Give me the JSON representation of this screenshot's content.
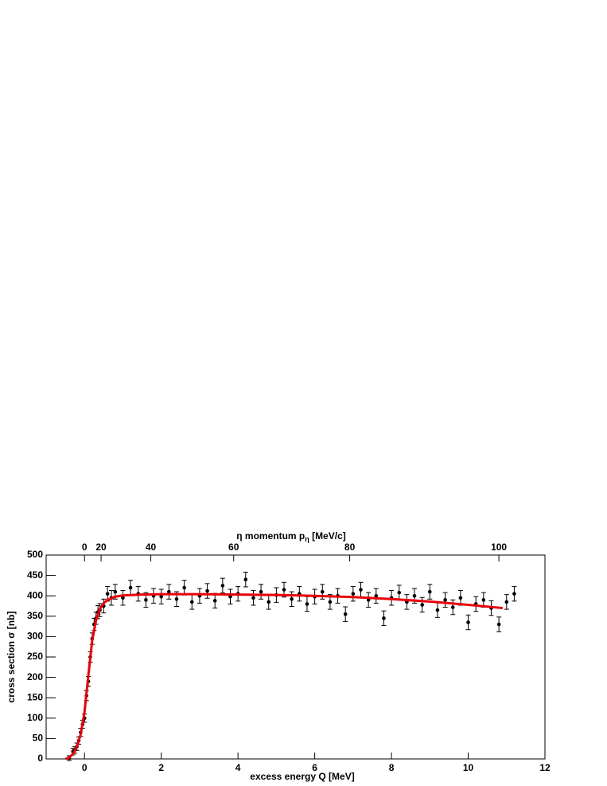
{
  "chart_data": {
    "type": "scatter",
    "x_label": "excess energy Q [MeV]",
    "y_label": "cross section σ [nb]",
    "x2_label": [
      "η momentum p",
      "η",
      " [MeV/c]"
    ],
    "xlim": [
      -1,
      12
    ],
    "xticks": [
      0,
      2,
      4,
      6,
      8,
      10,
      12
    ],
    "ylim": [
      0,
      500
    ],
    "yticks": [
      0,
      50,
      100,
      150,
      200,
      250,
      300,
      350,
      400,
      450,
      500
    ],
    "x2ticks": [
      0,
      20,
      40,
      60,
      80,
      100
    ],
    "series": [
      {
        "type": "errorbar",
        "color": "#000000",
        "x": [
          -0.4,
          -0.3,
          -0.25,
          -0.2,
          -0.15,
          -0.1,
          -0.05,
          0,
          0.05,
          0.1,
          0.15,
          0.2,
          0.25,
          0.3,
          0.35,
          0.4,
          0.5,
          0.6,
          0.7,
          0.8,
          1.0,
          1.2,
          1.4,
          1.6,
          1.8,
          2.0,
          2.2,
          2.4,
          2.6,
          2.8,
          3.0,
          3.2,
          3.4,
          3.6,
          3.8,
          4.0,
          4.2,
          4.4,
          4.6,
          4.8,
          5.0,
          5.2,
          5.4,
          5.6,
          5.8,
          6.0,
          6.2,
          6.4,
          6.6,
          6.8,
          7.0,
          7.2,
          7.4,
          7.6,
          7.8,
          8.0,
          8.2,
          8.4,
          8.6,
          8.8,
          9.0,
          9.2,
          9.4,
          9.6,
          9.8,
          10.0,
          10.2,
          10.4,
          10.6,
          10.8,
          11.0,
          11.2
        ],
        "values": [
          2,
          18,
          22,
          30,
          45,
          65,
          85,
          100,
          155,
          190,
          250,
          295,
          330,
          345,
          360,
          365,
          375,
          405,
          395,
          410,
          395,
          420,
          405,
          390,
          400,
          398,
          410,
          392,
          420,
          385,
          400,
          412,
          388,
          425,
          398,
          405,
          440,
          395,
          410,
          385,
          402,
          415,
          392,
          405,
          380,
          398,
          410,
          385,
          400,
          355,
          405,
          415,
          390,
          400,
          345,
          395,
          408,
          385,
          400,
          378,
          410,
          365,
          390,
          372,
          395,
          335,
          380,
          390,
          370,
          330,
          385,
          405
        ],
        "errors": [
          6,
          8,
          8,
          9,
          9,
          10,
          10,
          10,
          12,
          12,
          13,
          14,
          15,
          15,
          16,
          16,
          17,
          18,
          18,
          18,
          18,
          18,
          18,
          18,
          18,
          18,
          18,
          18,
          18,
          18,
          18,
          18,
          18,
          18,
          18,
          18,
          18,
          18,
          18,
          18,
          18,
          18,
          18,
          18,
          18,
          18,
          18,
          18,
          18,
          18,
          18,
          18,
          18,
          18,
          18,
          18,
          18,
          18,
          18,
          18,
          18,
          18,
          18,
          18,
          18,
          18,
          18,
          18,
          18,
          18,
          18,
          18
        ]
      },
      {
        "type": "line",
        "color": "#e8000b",
        "x": [
          -0.5,
          -0.4,
          -0.3,
          -0.2,
          -0.1,
          0,
          0.1,
          0.2,
          0.3,
          0.4,
          0.5,
          0.6,
          0.8,
          1.0,
          1.5,
          2,
          3,
          4,
          5,
          6,
          7,
          8,
          9,
          10,
          10.9
        ],
        "values": [
          0,
          3,
          12,
          30,
          60,
          115,
          205,
          290,
          340,
          368,
          382,
          390,
          398,
          401,
          403,
          404,
          404,
          403,
          402,
          400,
          397,
          392,
          386,
          378,
          370
        ]
      }
    ]
  }
}
